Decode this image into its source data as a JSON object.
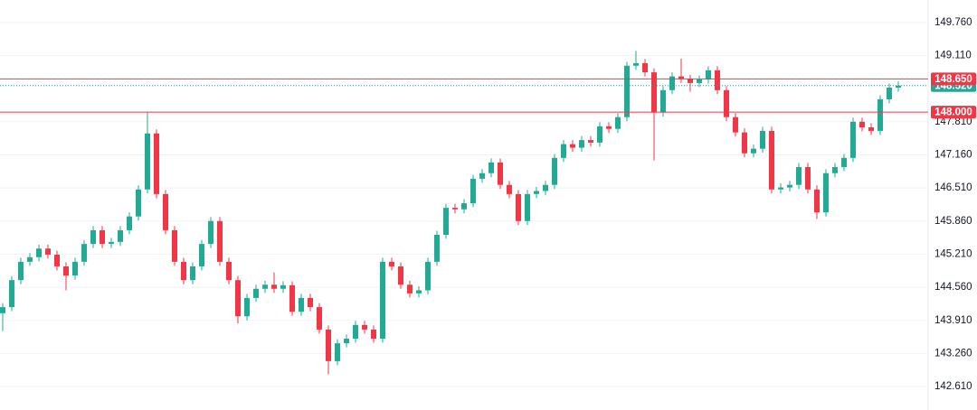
{
  "chart_data": {
    "type": "candlestick",
    "ylim": [
      142.15,
      150.2
    ],
    "yticks": [
      {
        "value": 149.76,
        "label": "149.760"
      },
      {
        "value": 149.11,
        "label": "149.110"
      },
      {
        "value": 147.81,
        "label": "147.810"
      },
      {
        "value": 147.16,
        "label": "147.160"
      },
      {
        "value": 146.51,
        "label": "146.510"
      },
      {
        "value": 145.86,
        "label": "145.860"
      },
      {
        "value": 145.21,
        "label": "145.210"
      },
      {
        "value": 144.56,
        "label": "144.560"
      },
      {
        "value": 143.91,
        "label": "143.910"
      },
      {
        "value": 143.26,
        "label": "143.260"
      },
      {
        "value": 142.61,
        "label": "142.610"
      }
    ],
    "grid": true,
    "up_color": "#22ab94",
    "down_color": "#f23645",
    "price_lines": [
      {
        "value": 148.52,
        "label": "148.520",
        "color": "#26a69a",
        "style": "dotted"
      },
      {
        "value": 148.65,
        "label": "148.650",
        "color": "#f23645",
        "style": "solid"
      },
      {
        "value": 148.0,
        "label": "148.000",
        "color": "#f23645",
        "style": "solid"
      }
    ],
    "open": [
      144.05,
      144.17,
      144.7,
      145.06,
      145.15,
      145.32,
      145.2,
      144.97,
      144.79,
      145.06,
      145.41,
      145.68,
      145.41,
      145.45,
      145.68,
      145.95,
      146.48,
      147.58,
      146.39,
      145.68,
      145.06,
      144.7,
      144.97,
      145.41,
      145.86,
      145.06,
      144.7,
      143.99,
      144.35,
      144.53,
      144.61,
      144.53,
      144.6,
      144.08,
      144.35,
      144.17,
      143.73,
      143.11,
      143.46,
      143.55,
      143.82,
      143.73,
      143.55,
      145.06,
      144.97,
      144.61,
      144.44,
      144.5,
      145.06,
      145.59,
      146.12,
      146.09,
      146.21,
      146.69,
      146.8,
      147.01,
      146.57,
      146.39,
      145.86,
      146.39,
      146.45,
      146.57,
      147.1,
      147.37,
      147.3,
      147.45,
      147.4,
      147.72,
      147.67,
      147.9,
      148.91,
      148.96,
      148.78,
      147.99,
      148.43,
      148.7,
      148.65,
      148.57,
      148.64,
      148.82,
      148.43,
      147.9,
      147.6,
      147.19,
      147.28,
      147.63,
      146.48,
      146.52,
      146.57,
      146.92,
      146.48,
      146.03,
      146.8,
      146.92,
      147.1,
      147.81,
      147.7,
      147.63,
      148.25,
      148.48
    ],
    "high": [
      144.25,
      144.78,
      145.14,
      145.23,
      145.4,
      145.4,
      145.28,
      145.05,
      145.14,
      145.49,
      145.76,
      145.76,
      145.53,
      145.76,
      146.03,
      146.56,
      148.0,
      147.66,
      146.47,
      145.76,
      145.14,
      145.05,
      145.49,
      145.94,
      145.94,
      145.14,
      144.78,
      144.43,
      144.61,
      144.69,
      144.85,
      144.68,
      144.68,
      144.43,
      144.43,
      144.25,
      143.81,
      143.54,
      143.63,
      143.9,
      143.9,
      143.81,
      145.14,
      145.14,
      145.05,
      144.69,
      144.58,
      145.14,
      145.67,
      146.2,
      146.2,
      146.29,
      146.77,
      146.88,
      147.09,
      147.09,
      146.65,
      146.47,
      146.47,
      146.53,
      146.65,
      147.18,
      147.45,
      147.45,
      147.53,
      147.53,
      147.8,
      147.8,
      147.98,
      148.99,
      149.2,
      149.04,
      148.86,
      148.51,
      148.78,
      149.05,
      148.73,
      148.72,
      148.9,
      148.9,
      148.51,
      147.98,
      147.68,
      147.36,
      147.71,
      147.71,
      146.6,
      146.65,
      147.0,
      147.0,
      146.56,
      146.88,
      147.0,
      147.18,
      147.89,
      147.89,
      147.78,
      148.33,
      148.56,
      148.6
    ],
    "low": [
      143.7,
      144.09,
      144.62,
      144.98,
      145.07,
      145.12,
      144.89,
      144.5,
      144.71,
      144.98,
      145.33,
      145.33,
      145.33,
      145.37,
      145.6,
      145.87,
      146.4,
      146.31,
      145.6,
      144.98,
      144.62,
      144.62,
      144.89,
      145.33,
      144.98,
      144.62,
      143.85,
      143.91,
      144.27,
      144.45,
      144.45,
      144.45,
      144.0,
      144.0,
      144.09,
      143.65,
      142.85,
      143.03,
      143.38,
      143.47,
      143.65,
      143.47,
      143.47,
      144.89,
      144.53,
      144.36,
      144.36,
      144.42,
      144.98,
      145.51,
      146.01,
      146.01,
      146.13,
      146.61,
      146.72,
      146.49,
      146.31,
      145.78,
      145.78,
      146.31,
      146.37,
      146.49,
      147.02,
      147.22,
      147.22,
      147.32,
      147.32,
      147.59,
      147.59,
      147.82,
      148.83,
      148.7,
      147.05,
      147.91,
      148.35,
      148.57,
      148.4,
      148.49,
      148.56,
      148.35,
      147.82,
      147.52,
      147.11,
      147.11,
      147.2,
      146.4,
      146.4,
      146.44,
      146.49,
      146.4,
      145.9,
      145.95,
      146.72,
      146.84,
      147.02,
      147.62,
      147.55,
      147.55,
      148.17,
      148.4
    ],
    "close": [
      144.17,
      144.7,
      145.06,
      145.15,
      145.32,
      145.2,
      144.97,
      144.79,
      145.06,
      145.41,
      145.68,
      145.41,
      145.45,
      145.68,
      145.95,
      146.48,
      147.58,
      146.39,
      145.68,
      145.06,
      144.7,
      144.97,
      145.41,
      145.86,
      145.06,
      144.7,
      143.99,
      144.35,
      144.53,
      144.61,
      144.53,
      144.6,
      144.08,
      144.35,
      144.17,
      143.73,
      143.11,
      143.46,
      143.55,
      143.82,
      143.73,
      143.55,
      145.06,
      144.97,
      144.61,
      144.44,
      144.5,
      145.06,
      145.59,
      146.12,
      146.09,
      146.21,
      146.69,
      146.8,
      147.01,
      146.57,
      146.39,
      145.86,
      146.39,
      146.45,
      146.57,
      147.1,
      147.37,
      147.3,
      147.45,
      147.4,
      147.72,
      147.67,
      147.9,
      148.91,
      148.96,
      148.78,
      147.99,
      148.43,
      148.7,
      148.65,
      148.57,
      148.64,
      148.82,
      148.43,
      147.9,
      147.6,
      147.19,
      147.28,
      147.63,
      146.48,
      146.52,
      146.57,
      146.92,
      146.48,
      146.03,
      146.8,
      146.92,
      147.1,
      147.81,
      147.7,
      147.63,
      148.25,
      148.48,
      148.52
    ]
  }
}
